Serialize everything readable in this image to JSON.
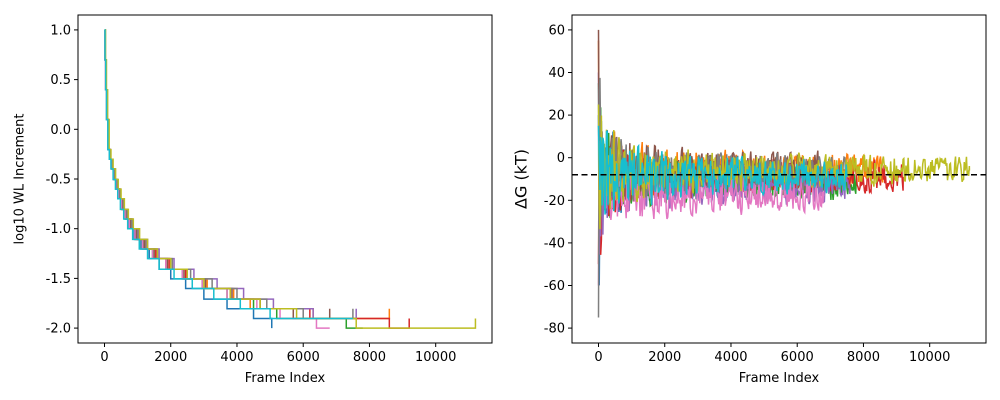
{
  "chart_data": [
    {
      "type": "line",
      "title": "",
      "xlabel": "Frame Index",
      "ylabel": "log10 WL Increment",
      "xlim": [
        -800,
        11700
      ],
      "ylim": [
        -2.15,
        1.15
      ],
      "xticks": [
        0,
        2000,
        4000,
        6000,
        8000,
        10000
      ],
      "yticks": [
        1.0,
        0.5,
        0.0,
        -0.5,
        -1.0,
        -1.5,
        -2.0
      ],
      "grid": false,
      "legend": "none",
      "step_levels": [
        1.0,
        0.699,
        0.398,
        0.097,
        -0.204,
        -0.301,
        -0.398,
        -0.505,
        -0.602,
        -0.699,
        -0.806,
        -0.903,
        -1.0,
        -1.107,
        -1.204,
        -1.301,
        -1.408,
        -1.505,
        -1.602,
        -1.709,
        -1.806,
        -1.903,
        -2.0
      ],
      "series": [
        {
          "color": "#1f77b4",
          "final_level": -2.0,
          "x_end": 5050,
          "x": [
            0,
            20,
            40,
            70,
            120,
            170,
            220,
            300,
            360,
            440,
            520,
            620,
            720,
            900,
            1100,
            1350,
            1650,
            2000,
            2450,
            3000,
            3700,
            4500,
            5050
          ]
        },
        {
          "color": "#ff7f0e",
          "final_level": -1.806,
          "x_end": 8600,
          "x": [
            0,
            25,
            50,
            80,
            130,
            180,
            240,
            310,
            380,
            460,
            560,
            680,
            820,
            1000,
            1250,
            1550,
            1950,
            2450,
            3100,
            3900,
            4400,
            6300,
            8600
          ]
        },
        {
          "color": "#2ca02c",
          "final_level": -2.0,
          "x_end": 7800,
          "x": [
            0,
            15,
            35,
            65,
            110,
            160,
            210,
            280,
            350,
            430,
            520,
            630,
            760,
            930,
            1150,
            1450,
            1850,
            2350,
            2950,
            3700,
            4500,
            5200,
            7300,
            7800
          ]
        },
        {
          "color": "#d62728",
          "final_level": -1.903,
          "x_end": 9200,
          "x": [
            0,
            20,
            45,
            75,
            120,
            175,
            235,
            300,
            380,
            460,
            560,
            680,
            820,
            1000,
            1250,
            1550,
            1950,
            2450,
            3050,
            3800,
            4700,
            6200,
            8600,
            9200
          ]
        },
        {
          "color": "#9467bd",
          "final_level": -1.806,
          "x_end": 7600,
          "x": [
            0,
            25,
            50,
            85,
            130,
            185,
            245,
            320,
            400,
            480,
            580,
            700,
            850,
            1050,
            1300,
            1650,
            2100,
            2700,
            3400,
            4200,
            5100,
            6300,
            7600
          ]
        },
        {
          "color": "#8c564b",
          "final_level": -1.806,
          "x_end": 6800,
          "x": [
            0,
            20,
            40,
            70,
            115,
            165,
            225,
            290,
            360,
            440,
            530,
            640,
            780,
            960,
            1200,
            1500,
            1900,
            2400,
            3050,
            3850,
            4700,
            5700,
            6800
          ]
        },
        {
          "color": "#e377c2",
          "final_level": -2.0,
          "x_end": 6800,
          "x": [
            0,
            15,
            30,
            60,
            100,
            150,
            200,
            270,
            340,
            420,
            510,
            620,
            750,
            920,
            1150,
            1450,
            1850,
            2350,
            2950,
            3700,
            4600,
            5300,
            6400,
            6800
          ]
        },
        {
          "color": "#7f7f7f",
          "final_level": -1.806,
          "x_end": 7500,
          "x": [
            0,
            25,
            45,
            80,
            125,
            180,
            240,
            310,
            390,
            470,
            570,
            680,
            820,
            1000,
            1250,
            1600,
            2050,
            2600,
            3250,
            4000,
            4900,
            6000,
            7500
          ]
        },
        {
          "color": "#bcbd22",
          "final_level": -1.903,
          "x_end": 11200,
          "x": [
            0,
            30,
            60,
            95,
            140,
            195,
            260,
            335,
            415,
            500,
            600,
            720,
            870,
            1060,
            1300,
            1600,
            2000,
            2500,
            3000,
            3800,
            4700,
            5800,
            7600,
            9200,
            11000,
            11200
          ]
        },
        {
          "color": "#17becf",
          "final_level": -1.903,
          "x_end": 7500,
          "x": [
            0,
            15,
            35,
            60,
            100,
            145,
            195,
            260,
            330,
            400,
            480,
            580,
            700,
            850,
            1050,
            1300,
            1650,
            2100,
            2650,
            3300,
            4100,
            5000,
            7500
          ]
        }
      ]
    },
    {
      "type": "line",
      "title": "",
      "xlabel": "Frame Index",
      "ylabel": "ΔG (kT)",
      "xlim": [
        -800,
        11700
      ],
      "ylim": [
        -87,
        67
      ],
      "xticks": [
        0,
        2000,
        4000,
        6000,
        8000,
        10000
      ],
      "yticks": [
        60,
        40,
        20,
        0,
        -20,
        -40,
        -60,
        -80
      ],
      "grid": false,
      "legend": "none",
      "reference_line": {
        "y": -8,
        "style": "dashed",
        "color": "#000000"
      },
      "series": [
        {
          "color": "#1f77b4",
          "x_end": 5050,
          "final_value": -10
        },
        {
          "color": "#ff7f0e",
          "x_end": 8600,
          "final_value": -6
        },
        {
          "color": "#2ca02c",
          "x_end": 7800,
          "final_value": -12
        },
        {
          "color": "#d62728",
          "x_end": 9200,
          "final_value": -9
        },
        {
          "color": "#9467bd",
          "x_end": 7600,
          "final_value": -14
        },
        {
          "color": "#8c564b",
          "x_end": 6800,
          "final_value": -5
        },
        {
          "color": "#e377c2",
          "x_end": 6800,
          "final_value": -18
        },
        {
          "color": "#7f7f7f",
          "x_end": 7500,
          "final_value": -7
        },
        {
          "color": "#bcbd22",
          "x_end": 11200,
          "final_value": -6
        },
        {
          "color": "#17becf",
          "x_end": 7500,
          "final_value": -9
        }
      ]
    }
  ]
}
